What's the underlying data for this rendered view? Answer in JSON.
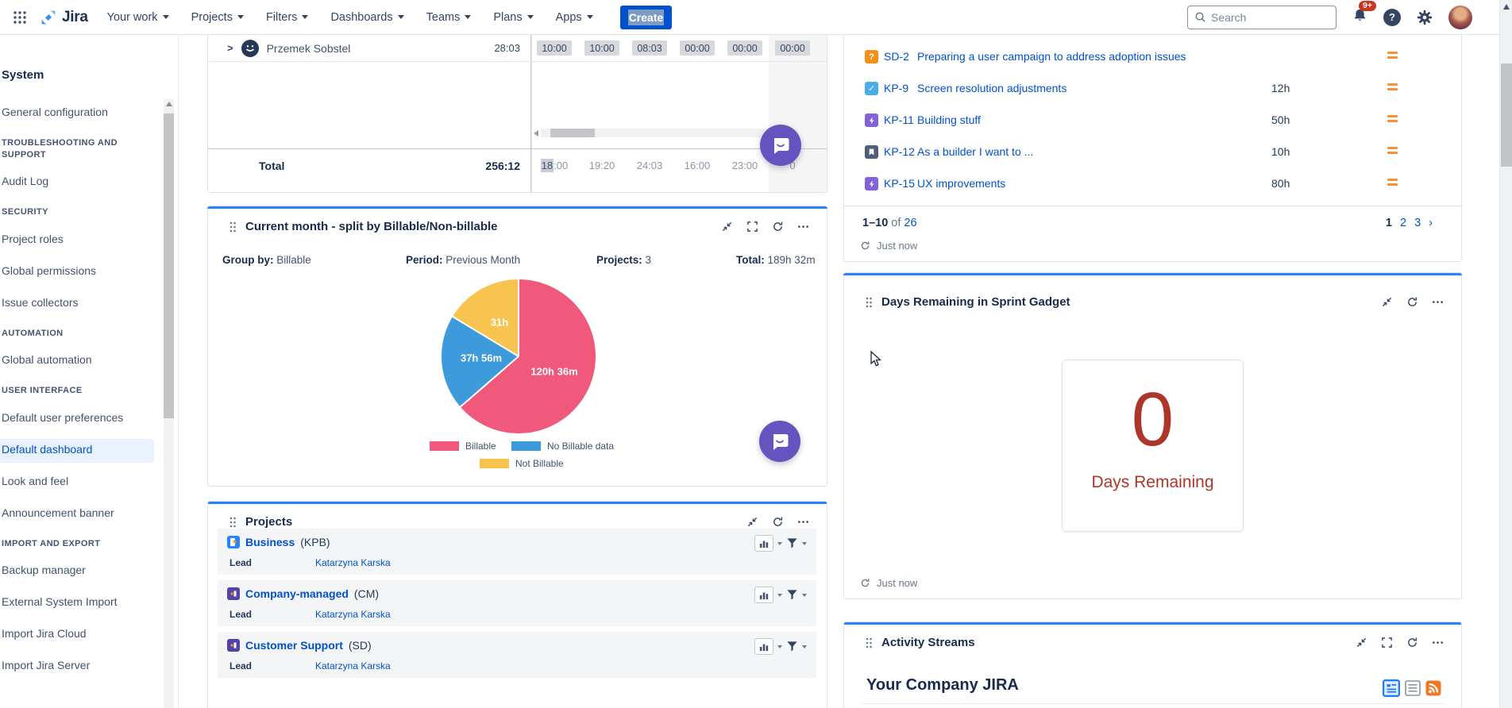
{
  "nav": {
    "logo_text": "Jira",
    "menus": [
      "Your work",
      "Projects",
      "Filters",
      "Dashboards",
      "Teams",
      "Plans",
      "Apps"
    ],
    "create_label": "Create",
    "search_placeholder": "Search",
    "notification_badge": "9+"
  },
  "sidebar": {
    "title": "System",
    "items": [
      {
        "type": "link",
        "label": "General configuration"
      },
      {
        "type": "header",
        "label": "TROUBLESHOOTING AND SUPPORT"
      },
      {
        "type": "link",
        "label": "Audit Log"
      },
      {
        "type": "header",
        "label": "SECURITY"
      },
      {
        "type": "link",
        "label": "Project roles"
      },
      {
        "type": "link",
        "label": "Global permissions"
      },
      {
        "type": "link",
        "label": "Issue collectors"
      },
      {
        "type": "header",
        "label": "AUTOMATION"
      },
      {
        "type": "link",
        "label": "Global automation"
      },
      {
        "type": "header",
        "label": "USER INTERFACE"
      },
      {
        "type": "link",
        "label": "Default user preferences"
      },
      {
        "type": "link",
        "label": "Default dashboard",
        "selected": true
      },
      {
        "type": "link",
        "label": "Look and feel"
      },
      {
        "type": "link",
        "label": "Announcement banner"
      },
      {
        "type": "header",
        "label": "IMPORT AND EXPORT"
      },
      {
        "type": "link",
        "label": "Backup manager"
      },
      {
        "type": "link",
        "label": "External System Import"
      },
      {
        "type": "link",
        "label": "Import Jira Cloud"
      },
      {
        "type": "link",
        "label": "Import Jira Server"
      }
    ]
  },
  "timesheet": {
    "person": {
      "name": "Przemek Sobstel",
      "total": "28:03",
      "cells": [
        "10:00",
        "10:00",
        "08:03",
        "00:00",
        "00:00",
        "00:00"
      ]
    },
    "total_label": "Total",
    "total_value": "256:12",
    "total_first_cell_highlight": "18",
    "total_first_cell_rest": ":00",
    "total_cells": [
      "19:20",
      "24:03",
      "16:00",
      "23:00",
      "0"
    ]
  },
  "pie_gadget": {
    "title": "Current month - split by Billable/Non-billable",
    "meta": [
      {
        "label": "Group by:",
        "value": "Billable"
      },
      {
        "label": "Period:",
        "value": "Previous Month"
      },
      {
        "label": "Projects:",
        "value": "3"
      },
      {
        "label": "Total:",
        "value": "189h 32m"
      }
    ]
  },
  "chart_data": {
    "type": "pie",
    "title": "Current month - split by Billable/Non-billable",
    "labels": [
      "Billable",
      "No Billable data",
      "Not Billable"
    ],
    "values": [
      120.6,
      37.933,
      31.0
    ],
    "value_labels": [
      "120h 36m",
      "37h 56m",
      "31h"
    ],
    "colors": [
      "#F0597C",
      "#3D9BDC",
      "#F8C450"
    ],
    "total_label": "189h 32m",
    "legend_position": "bottom",
    "start_angle_deg": 0,
    "direction": "clockwise"
  },
  "projects": {
    "title": "Projects",
    "lead_label": "Lead",
    "rows": [
      {
        "name": "Business",
        "key": "(KPB)",
        "lead": "Katarzyna Karska",
        "tile": "#2684FF"
      },
      {
        "name": "Company-managed",
        "key": "(CM)",
        "lead": "Katarzyna Karska",
        "tile": "#5243AA"
      },
      {
        "name": "Customer Support",
        "key": "(SD)",
        "lead": "Katarzyna Karska",
        "tile": "#5243AA"
      }
    ]
  },
  "issues": {
    "rows": [
      {
        "key": "SD-2",
        "summary": "Preparing a user campaign to address adoption issues",
        "hours": "",
        "type": "question"
      },
      {
        "key": "KP-9",
        "summary": "Screen resolution adjustments",
        "hours": "12h",
        "type": "task"
      },
      {
        "key": "KP-11",
        "summary": "Building stuff",
        "hours": "50h",
        "type": "bolt"
      },
      {
        "key": "KP-12",
        "summary": "As a builder I want to ...",
        "hours": "10h",
        "type": "bookmark"
      },
      {
        "key": "KP-15",
        "summary": "UX improvements",
        "hours": "80h",
        "type": "bolt"
      }
    ],
    "pagination": {
      "range": "1–10",
      "of_word": "of",
      "total": "26",
      "pages": [
        "1",
        "2",
        "3"
      ],
      "next": "›",
      "current_page": "1"
    },
    "refreshed": "Just now"
  },
  "sprint": {
    "title": "Days Remaining in Sprint Gadget",
    "value": "0",
    "label": "Days Remaining",
    "refreshed": "Just now",
    "accent": "#AE3529"
  },
  "activity": {
    "title": "Activity Streams",
    "heading": "Your Company JIRA"
  },
  "colors": {
    "brand_blue": "#0052CC",
    "gadget_top_bar": "#2684FF",
    "link": "#0052CC",
    "priority_medium": "#F79232",
    "chat_bubble": "#6554C0",
    "sprint_red": "#AE3529"
  }
}
